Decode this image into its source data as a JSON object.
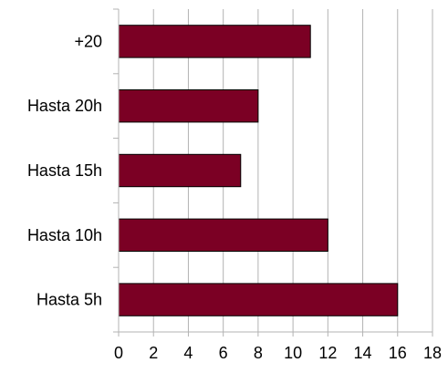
{
  "chart_data": {
    "type": "bar",
    "orientation": "horizontal",
    "categories": [
      "+20",
      "Hasta 20h",
      "Hasta 15h",
      "Hasta 10h",
      "Hasta 5h"
    ],
    "values": [
      11,
      8,
      7,
      12,
      16
    ],
    "title": "",
    "xlabel": "",
    "ylabel": "",
    "xlim": [
      0,
      18
    ],
    "xticks": [
      "0",
      "2",
      "4",
      "6",
      "8",
      "10",
      "12",
      "14",
      "16",
      "18"
    ],
    "grid": "vertical",
    "legend": "none",
    "bar_color": "#7b0024",
    "bar_edge_color": "#000000",
    "grid_color": "#b3b3b3",
    "axis_color": "#b3b3b3"
  }
}
